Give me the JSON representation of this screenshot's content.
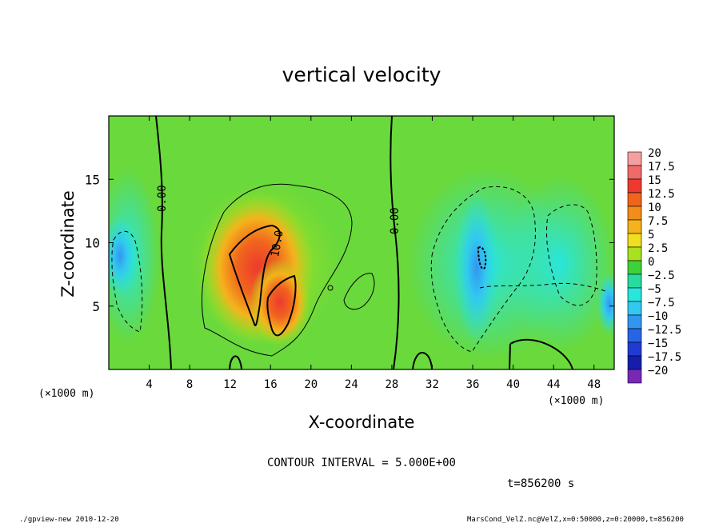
{
  "chart_data": {
    "type": "heatmap",
    "title": "vertical velocity",
    "xlabel": "X-coordinate",
    "ylabel": "Z-coordinate",
    "x_units": "(×1000 m)",
    "y_units": "(×1000 m)",
    "xlim": [
      0,
      50
    ],
    "ylim": [
      0,
      20
    ],
    "x_ticks": [
      4,
      8,
      12,
      16,
      20,
      24,
      28,
      32,
      36,
      40,
      44,
      48
    ],
    "y_ticks": [
      5,
      10,
      15
    ],
    "colorbar": {
      "labels": [
        "20",
        "17.5",
        "15",
        "12.5",
        "10",
        "7.5",
        "5",
        "2.5",
        "0",
        "−2.5",
        "−5",
        "−7.5",
        "−10",
        "−12.5",
        "−15",
        "−17.5",
        "−20"
      ],
      "colors": [
        "#f4a0a0",
        "#f06a6a",
        "#ee3a2e",
        "#f0641e",
        "#f28c1a",
        "#f5b21c",
        "#f0de20",
        "#a8e21e",
        "#3ed23a",
        "#28dca0",
        "#28e6dc",
        "#32c8f0",
        "#3296f0",
        "#2864e6",
        "#1e3cd2",
        "#141eaa",
        "#7828b4"
      ]
    },
    "contour_labels": [
      "0.00",
      "0.00",
      "10.0"
    ],
    "contour_interval_text": "CONTOUR INTERVAL = 5.000E+00",
    "time_text": "t=856200 s",
    "features": [
      {
        "kind": "updraft",
        "x": 15,
        "z": 8,
        "max": 16
      },
      {
        "kind": "updraft",
        "x": 17,
        "z": 5,
        "max": 15
      },
      {
        "kind": "downdraft",
        "x": 36,
        "z": 9,
        "min": -10
      },
      {
        "kind": "downdraft",
        "x": 1,
        "z": 8,
        "min": -6
      }
    ]
  },
  "footer": {
    "left": "./gpview-new   2010-12-20",
    "right": "MarsCond_VelZ.nc@VelZ,x=0:50000,z=0:20000,t=856200"
  }
}
